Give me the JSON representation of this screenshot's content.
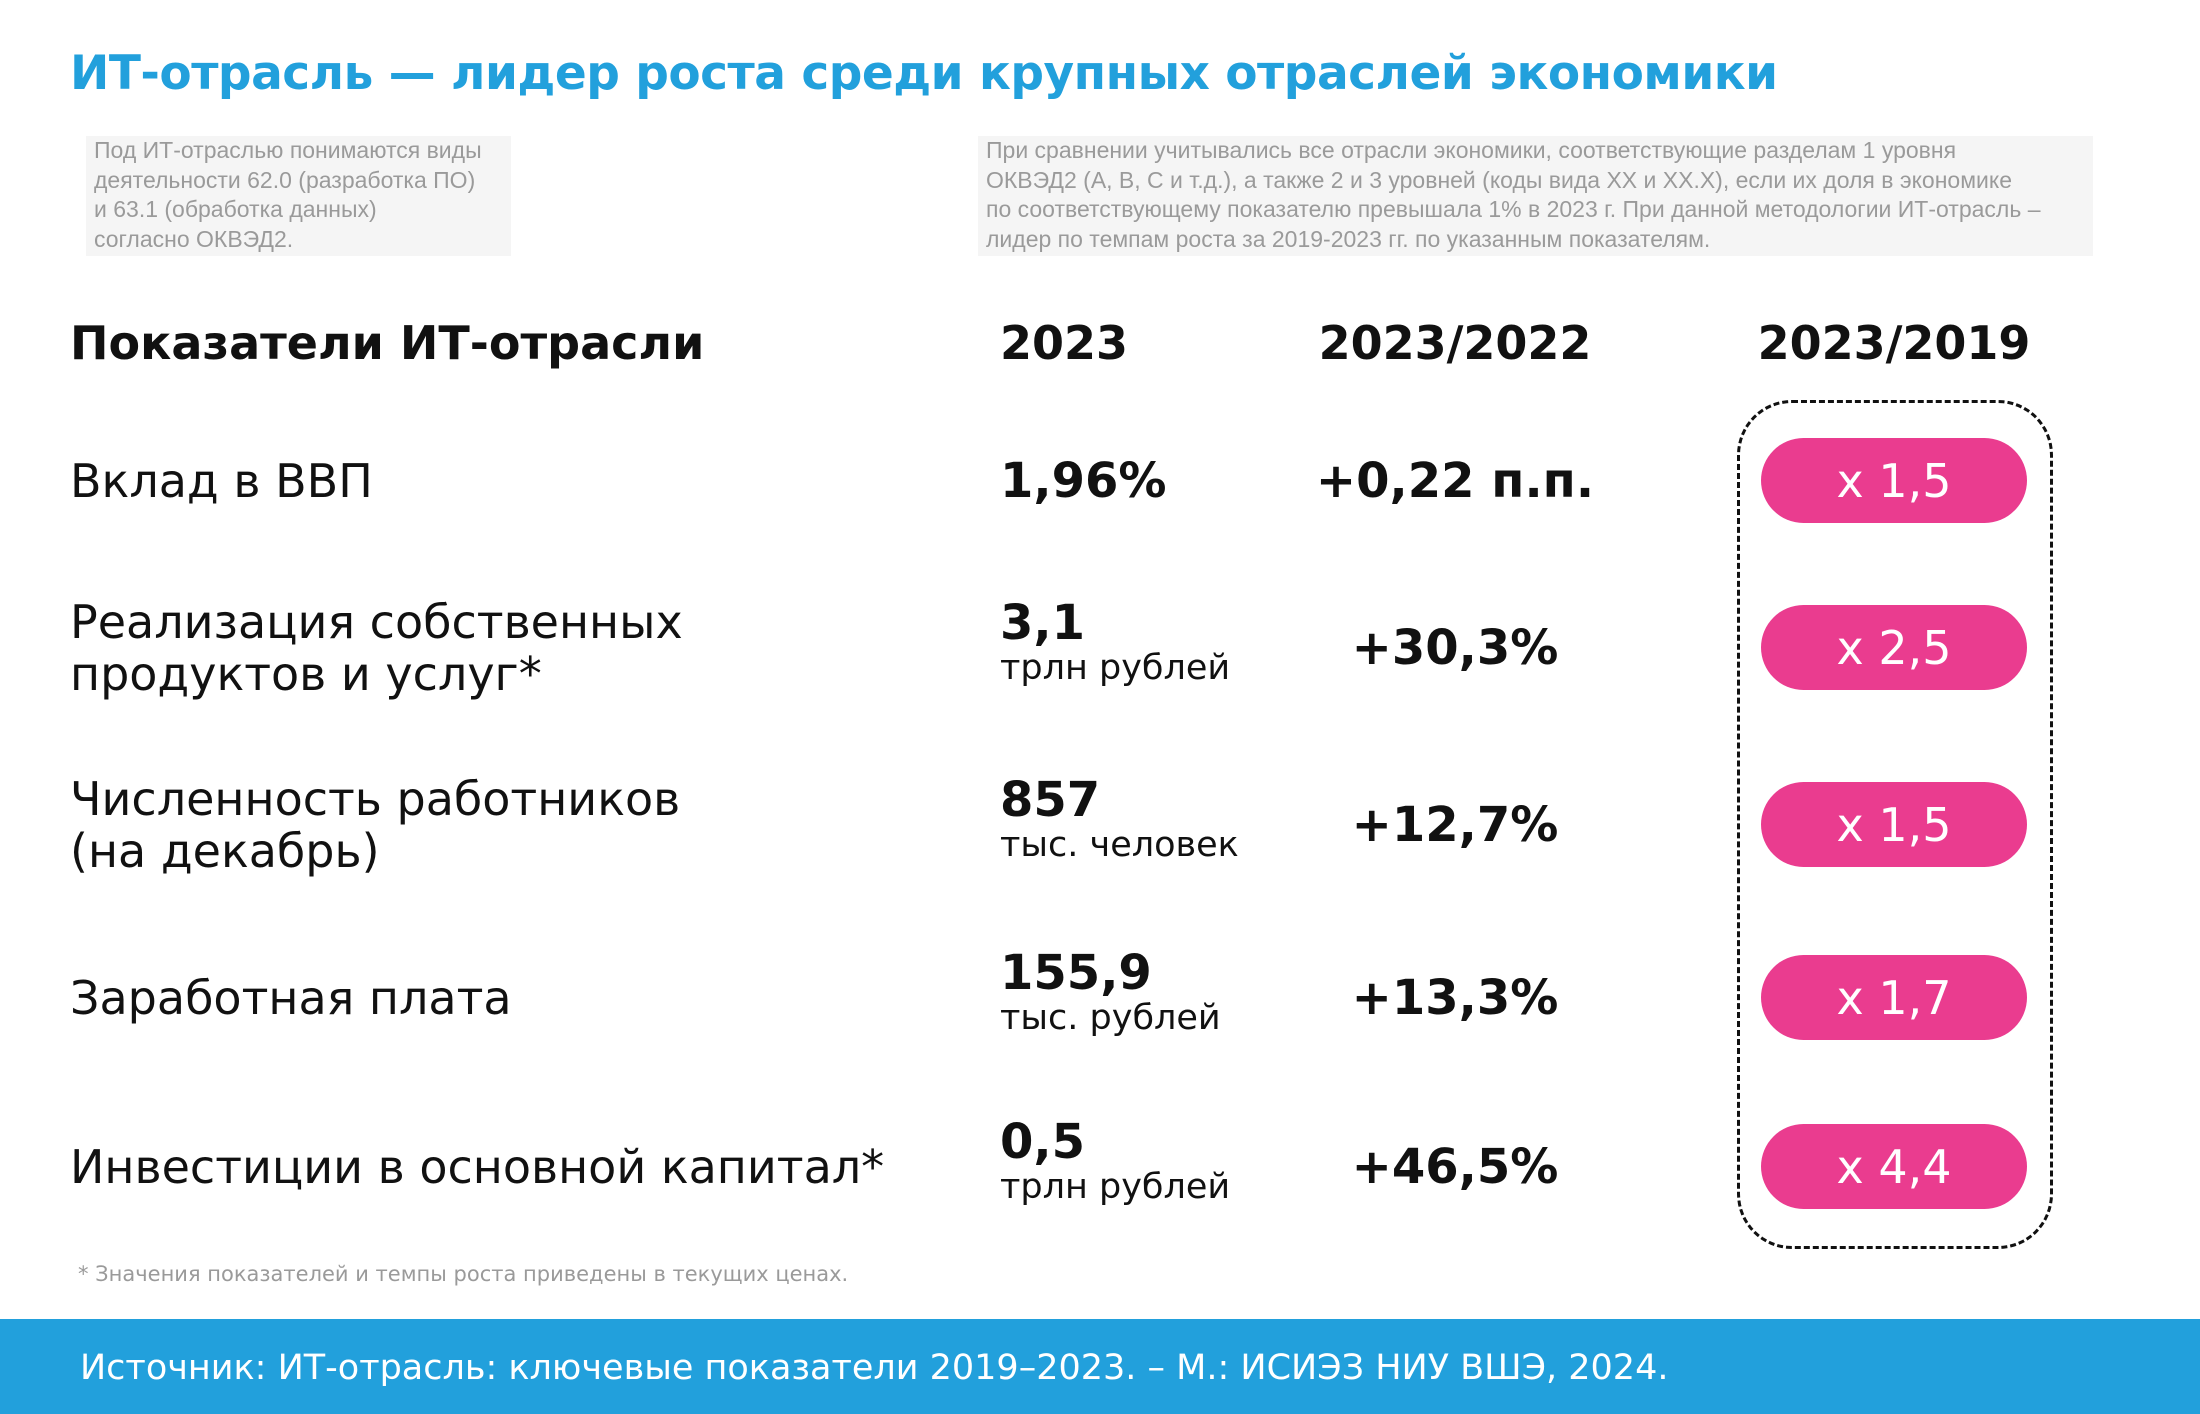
{
  "title": "ИТ-отрасль — лидер роста среди крупных отраслей экономики",
  "notes": [
    [
      "Под ИТ-отраслью понимаются виды",
      "деятельности 62.0 (разработка ПО)",
      "и 63.1 (обработка данных)",
      "согласно ОКВЭД2."
    ],
    [
      "При сравнении учитывались все отрасли экономики, соответствующие разделам 1 уровня",
      "ОКВЭД2 (А, В, С и т.д.), а также 2 и 3 уровней (коды вида ХХ и ХХ.Х), если их доля в экономике",
      "по соответствующему показателю превышала 1% в 2023 г. При данной методологии ИТ-отрасль –",
      "лидер по темпам роста за 2019-2023 гг. по указанным показателям."
    ]
  ],
  "headers": {
    "indicator": "Показатели ИТ-отрасли",
    "y2023": "2023",
    "vs2022": "2023/2022",
    "vs2019": "2023/2019"
  },
  "rows": [
    {
      "label": [
        "Вклад в ВВП"
      ],
      "value": "1,96%",
      "unit": "",
      "change": "+0,22 п.п.",
      "multiple": "x 1,5"
    },
    {
      "label": [
        "Реализация собственных",
        "продуктов и услуг*"
      ],
      "value": "3,1",
      "unit": "трлн рублей",
      "change": "+30,3%",
      "multiple": "x 2,5"
    },
    {
      "label": [
        "Численность работников",
        "(на декабрь)"
      ],
      "value": "857",
      "unit": "тыс. человек",
      "change": "+12,7%",
      "multiple": "x 1,5"
    },
    {
      "label": [
        "Заработная плата"
      ],
      "value": "155,9",
      "unit": "тыс. рублей",
      "change": "+13,3%",
      "multiple": "x 1,7"
    },
    {
      "label": [
        "Инвестиции в основной капитал*"
      ],
      "value": "0,5",
      "unit": "трлн рублей",
      "change": "+46,5%",
      "multiple": "x 4,4"
    }
  ],
  "footnote": "* Значения показателей и темпы роста приведены в текущих ценах.",
  "source": "Источник: ИТ-отрасль: ключевые показатели 2019–2023. – М.: ИСИЭЗ НИУ ВШЭ, 2024.",
  "colors": {
    "accent": "#22a0dc",
    "pill": "#ea3c8f"
  }
}
